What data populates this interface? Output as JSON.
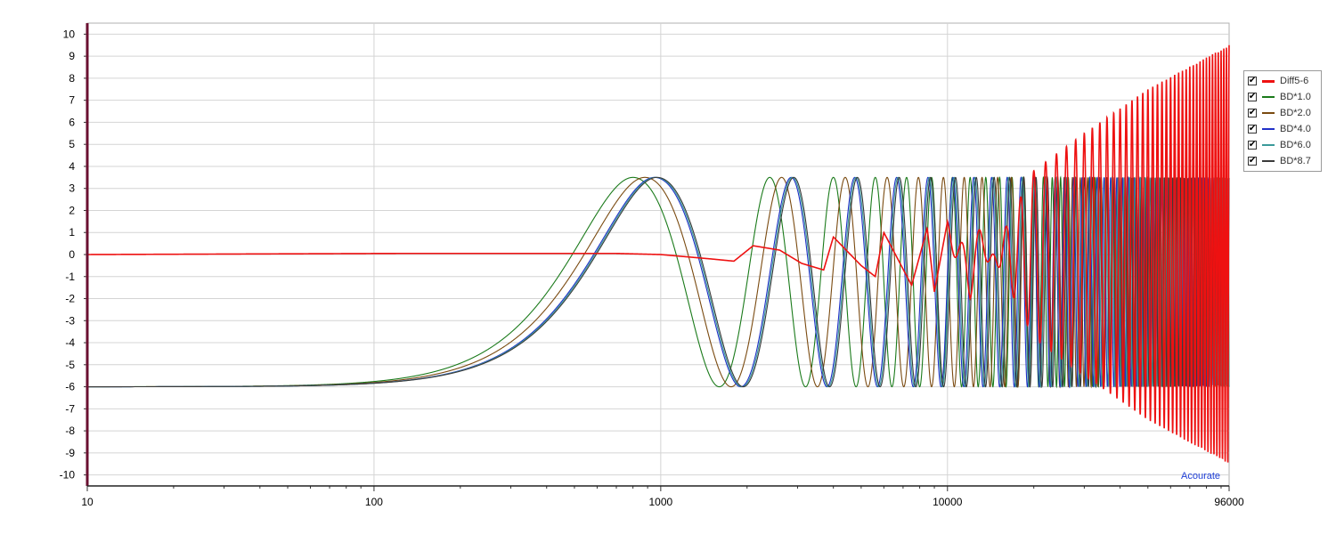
{
  "chart_data": {
    "type": "line",
    "x_scale": "log",
    "xlim": [
      10,
      96000
    ],
    "ylim": [
      -10.5,
      10.5
    ],
    "x_ticks": [
      "10",
      "100",
      "1000",
      "10000",
      "96000"
    ],
    "y_ticks": [
      "10",
      "9",
      "8",
      "7",
      "6",
      "5",
      "4",
      "3",
      "2",
      "1",
      "0",
      "-1",
      "-2",
      "-3",
      "-4",
      "-5",
      "-6",
      "-7",
      "-8",
      "-9",
      "-10"
    ],
    "grid": true,
    "legend_placement": "right",
    "series": [
      {
        "name": "Diff5-6",
        "color": "#ee1111",
        "x": [
          10,
          120,
          700,
          1000,
          1500,
          1800,
          2100,
          2600,
          3100,
          3700,
          4000,
          5000,
          5600,
          6000,
          7500,
          8500,
          9000,
          10000,
          12000,
          20000,
          30000,
          50000,
          96000
        ],
        "y": [
          0,
          0.05,
          0.05,
          0,
          -0.2,
          -0.3,
          0.4,
          0.2,
          -0.4,
          -0.7,
          0.8,
          -0.5,
          -1.0,
          1.0,
          -1.4,
          1.2,
          -1.7,
          1.5,
          -2.0,
          3.8,
          5.5,
          7.5,
          9.5
        ]
      },
      {
        "name": "BD*1.0",
        "color": "#1a7a1a",
        "x": [
          10,
          100,
          400,
          800,
          1600,
          2400,
          3200
        ],
        "y": [
          -6.0,
          -5.0,
          0,
          3.5,
          -6.0,
          3.5,
          -6.0
        ]
      },
      {
        "name": "BD*2.0",
        "color": "#7a4a10",
        "x": [
          10,
          100,
          420,
          880,
          1800,
          2700,
          3600
        ],
        "y": [
          -6.0,
          -5.1,
          0,
          3.5,
          -6.0,
          3.5,
          -6.0
        ]
      },
      {
        "name": "BD*4.0",
        "color": "#2030c8",
        "x": [
          10,
          100,
          440,
          950,
          1900,
          2850,
          3800
        ],
        "y": [
          -6.0,
          -5.2,
          0,
          3.5,
          -6.0,
          3.5,
          -6.0
        ]
      },
      {
        "name": "BD*6.0",
        "color": "#3a9a9a",
        "x": [
          10,
          100,
          440,
          960,
          1920,
          2880,
          3840
        ],
        "y": [
          -6.0,
          -5.2,
          0,
          3.5,
          -6.0,
          3.5,
          -6.0
        ]
      },
      {
        "name": "BD*8.7",
        "color": "#3a3a3a",
        "x": [
          10,
          100,
          440,
          970,
          1940,
          2910,
          3880
        ],
        "y": [
          -6.0,
          -5.2,
          0,
          3.5,
          -6.0,
          3.5,
          -6.0
        ]
      }
    ]
  },
  "legend": {
    "items": [
      {
        "label": "Diff5-6",
        "color": "#ee1111"
      },
      {
        "label": "BD*1.0",
        "color": "#1a7a1a"
      },
      {
        "label": "BD*2.0",
        "color": "#7a4a10"
      },
      {
        "label": "BD*4.0",
        "color": "#2030c8"
      },
      {
        "label": "BD*6.0",
        "color": "#3a9a9a"
      },
      {
        "label": "BD*8.7",
        "color": "#3a3a3a"
      }
    ],
    "check_glyph": "✔"
  },
  "watermark": "Acourate"
}
